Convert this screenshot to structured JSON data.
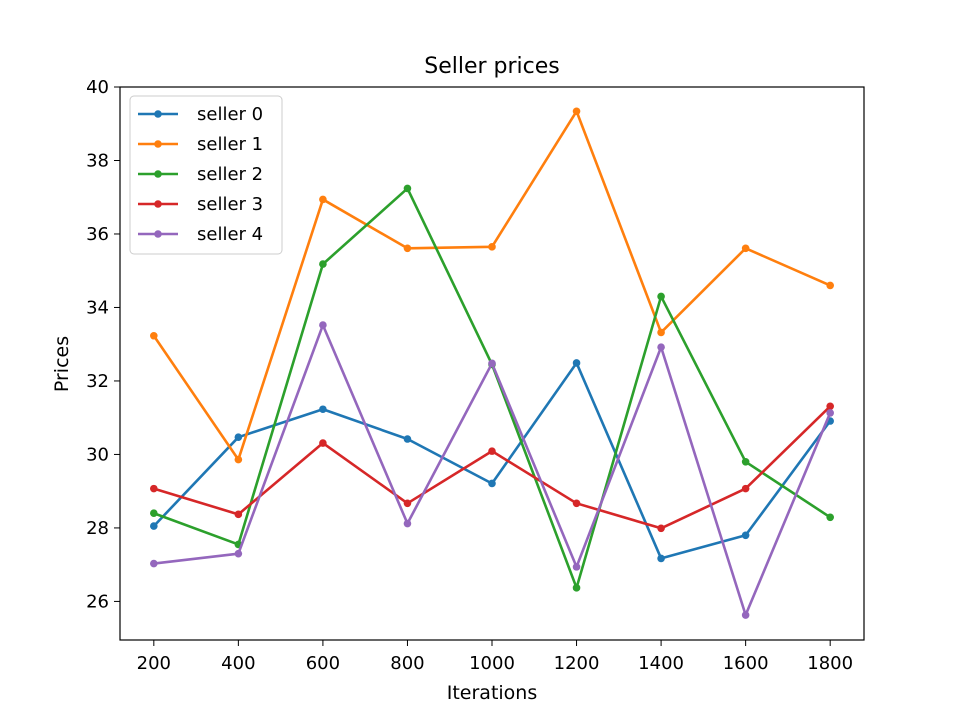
{
  "chart_data": {
    "type": "line",
    "title": "Seller prices",
    "xlabel": "Iterations",
    "ylabel": "Prices",
    "x": [
      200,
      400,
      600,
      800,
      1000,
      1200,
      1400,
      1600,
      1800
    ],
    "xticks": [
      "200",
      "400",
      "600",
      "800",
      "1000",
      "1200",
      "1400",
      "1600",
      "1800"
    ],
    "yticks": [
      "26",
      "28",
      "30",
      "32",
      "34",
      "36",
      "38",
      "40"
    ],
    "xlim": [
      120,
      1880
    ],
    "ylim": [
      24.95,
      40.0
    ],
    "grid": false,
    "legend": "top-left",
    "series": [
      {
        "name": "seller 0",
        "color": "#1f77b4",
        "values": [
          28.05,
          30.47,
          31.23,
          30.42,
          29.21,
          32.49,
          27.17,
          27.8,
          30.91
        ]
      },
      {
        "name": "seller 1",
        "color": "#ff7f0e",
        "values": [
          33.23,
          29.86,
          36.94,
          35.61,
          35.65,
          39.34,
          33.32,
          35.61,
          34.6
        ]
      },
      {
        "name": "seller 2",
        "color": "#2ca02c",
        "values": [
          28.4,
          27.55,
          35.18,
          37.24,
          32.45,
          26.37,
          34.3,
          29.8,
          28.29
        ]
      },
      {
        "name": "seller 3",
        "color": "#d62728",
        "values": [
          29.07,
          28.37,
          30.31,
          28.67,
          30.09,
          28.67,
          27.99,
          29.07,
          31.31
        ]
      },
      {
        "name": "seller 4",
        "color": "#9467bd",
        "values": [
          27.03,
          27.3,
          33.52,
          28.12,
          32.48,
          26.94,
          32.92,
          25.63,
          31.13
        ]
      }
    ]
  }
}
